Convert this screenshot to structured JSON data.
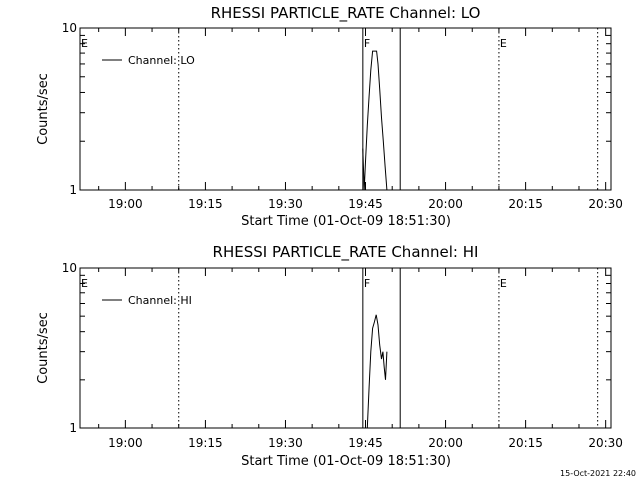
{
  "chart_data": [
    {
      "type": "line",
      "title": "RHESSI PARTICLE_RATE Channel: LO",
      "xlabel": "Start Time (01-Oct-09 18:51:30)",
      "ylabel": "Counts/sec",
      "yscale": "log",
      "ylim": [
        1,
        10
      ],
      "xlim": [
        "18:51:30",
        "20:31:00"
      ],
      "x_ticks": [
        "19:00",
        "19:15",
        "19:30",
        "19:45",
        "20:00",
        "20:15",
        "20:30"
      ],
      "y_ticks": [
        "1",
        "10"
      ],
      "legend": {
        "position": "top-left",
        "entries": [
          "Channel: LO"
        ]
      },
      "grid": false,
      "flags": [
        {
          "label": "E",
          "time": "18:51:30",
          "style": "label-only"
        },
        {
          "label": "F",
          "time": "19:44:30",
          "style": "solid"
        },
        {
          "label": "",
          "time": "19:51:30",
          "style": "solid"
        },
        {
          "label": "",
          "time": "19:10:00",
          "style": "dotted"
        },
        {
          "label": "E",
          "time": "20:10:00",
          "style": "dotted"
        },
        {
          "label": "",
          "time": "20:28:30",
          "style": "dotted"
        }
      ],
      "series": [
        {
          "name": "Channel: LO",
          "x": [
            "19:44:30",
            "19:44:45",
            "19:45:00",
            "19:45:20",
            "19:45:40",
            "19:46:00",
            "19:46:20",
            "19:46:45",
            "19:47:05",
            "19:47:20",
            "19:47:40",
            "19:48:00",
            "19:48:20",
            "19:48:40",
            "19:49:00"
          ],
          "y": [
            1.8,
            1.0,
            1.5,
            2.5,
            3.8,
            5.5,
            7.2,
            7.2,
            7.2,
            6.0,
            4.2,
            2.8,
            2.0,
            1.4,
            1.0
          ]
        }
      ]
    },
    {
      "type": "line",
      "title": "RHESSI PARTICLE_RATE Channel: HI",
      "xlabel": "Start Time (01-Oct-09 18:51:30)",
      "ylabel": "Counts/sec",
      "yscale": "log",
      "ylim": [
        1,
        10
      ],
      "xlim": [
        "18:51:30",
        "20:31:00"
      ],
      "x_ticks": [
        "19:00",
        "19:15",
        "19:30",
        "19:45",
        "20:00",
        "20:15",
        "20:30"
      ],
      "y_ticks": [
        "1",
        "10"
      ],
      "legend": {
        "position": "top-left",
        "entries": [
          "Channel: HI"
        ]
      },
      "grid": false,
      "flags": [
        {
          "label": "E",
          "time": "18:51:30",
          "style": "label-only"
        },
        {
          "label": "F",
          "time": "19:44:30",
          "style": "solid"
        },
        {
          "label": "",
          "time": "19:51:30",
          "style": "solid"
        },
        {
          "label": "",
          "time": "19:10:00",
          "style": "dotted"
        },
        {
          "label": "E",
          "time": "20:10:00",
          "style": "dotted"
        },
        {
          "label": "",
          "time": "20:28:30",
          "style": "dotted"
        }
      ],
      "series": [
        {
          "name": "Channel: HI",
          "x": [
            "19:45:20",
            "19:45:40",
            "19:46:00",
            "19:46:20",
            "19:46:40",
            "19:47:00",
            "19:47:20",
            "19:47:40",
            "19:48:00",
            "19:48:15",
            "19:48:30",
            "19:48:45",
            "19:49:00"
          ],
          "y": [
            1.0,
            1.8,
            3.0,
            4.2,
            4.6,
            5.1,
            4.4,
            3.3,
            2.7,
            3.0,
            2.4,
            2.0,
            3.0
          ]
        }
      ]
    }
  ],
  "footer": {
    "stamp": "15-Oct-2021 22:40"
  }
}
